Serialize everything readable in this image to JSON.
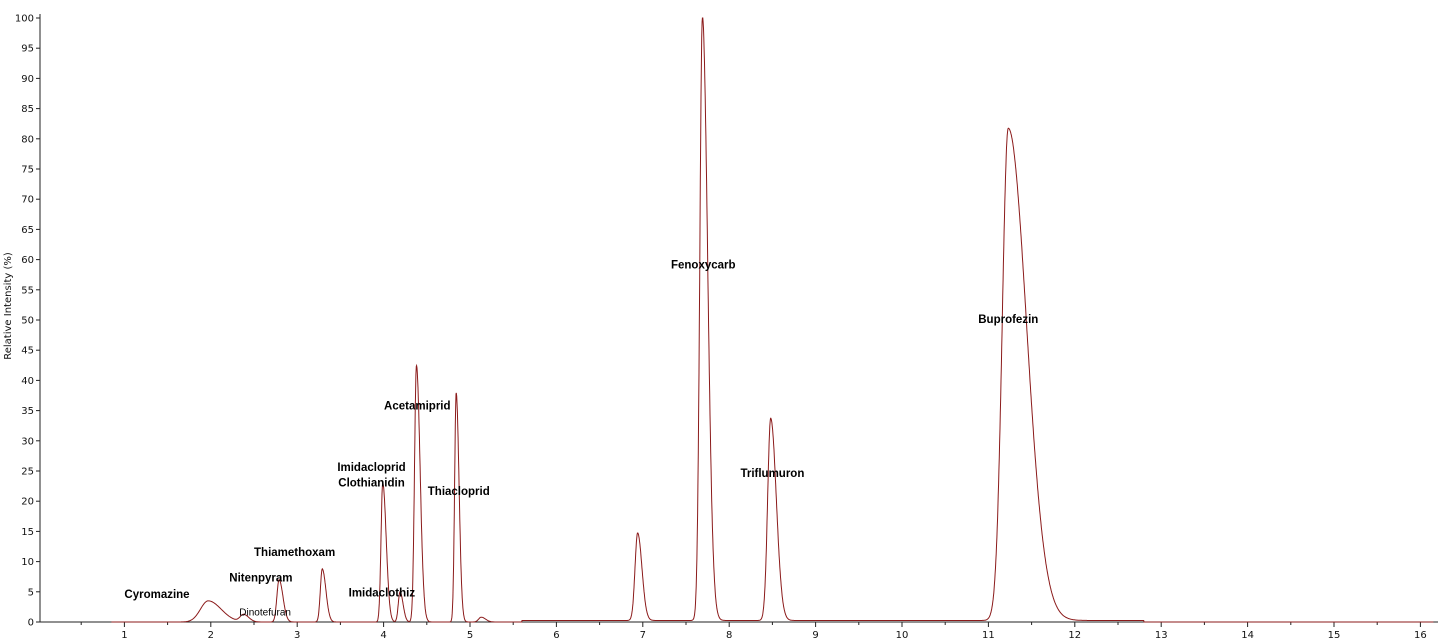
{
  "chart_data": {
    "type": "line",
    "title": "",
    "xlabel": "",
    "ylabel": "Relative Intensity (%)",
    "xlim": [
      0,
      16.2
    ],
    "ylim": [
      0,
      100
    ],
    "x_ticks": [
      1,
      2,
      3,
      4,
      5,
      6,
      7,
      8,
      9,
      10,
      11,
      12,
      13,
      14,
      15,
      16
    ],
    "y_ticks": [
      0,
      5,
      10,
      15,
      20,
      25,
      30,
      35,
      40,
      45,
      50,
      55,
      60,
      65,
      70,
      75,
      80,
      85,
      90,
      95,
      100
    ],
    "grid": false,
    "series_color": "#8b1a1a",
    "peaks": [
      {
        "rt": 1.97,
        "height": 3.5,
        "width": 0.09,
        "tail": 0.06
      },
      {
        "rt": 2.38,
        "height": 1.2,
        "width": 0.04,
        "tail": 0.02
      },
      {
        "rt": 2.79,
        "height": 7.0,
        "width": 0.025,
        "tail": 0.02
      },
      {
        "rt": 3.29,
        "height": 8.8,
        "width": 0.022,
        "tail": 0.02
      },
      {
        "rt": 3.99,
        "height": 23.0,
        "width": 0.02,
        "tail": 0.02
      },
      {
        "rt": 4.19,
        "height": 5.0,
        "width": 0.02,
        "tail": 0.015
      },
      {
        "rt": 4.38,
        "height": 42.5,
        "width": 0.022,
        "tail": 0.02
      },
      {
        "rt": 4.84,
        "height": 38.0,
        "width": 0.018,
        "tail": 0.015
      },
      {
        "rt": 5.13,
        "height": 0.8,
        "width": 0.03,
        "tail": 0.02
      },
      {
        "rt": 6.94,
        "height": 14.5,
        "width": 0.03,
        "tail": 0.02
      },
      {
        "rt": 7.69,
        "height": 100.0,
        "width": 0.03,
        "tail": 0.03
      },
      {
        "rt": 8.48,
        "height": 33.5,
        "width": 0.035,
        "tail": 0.03
      },
      {
        "rt": 11.23,
        "height": 81.5,
        "width": 0.07,
        "tail": 0.14
      }
    ],
    "annotations": [
      {
        "text": "Cyromazine",
        "x": 1.0,
        "y": 4.0,
        "size": "normal"
      },
      {
        "text": "Dinotefuran",
        "x": 2.33,
        "y": 1.1,
        "size": "small"
      },
      {
        "text": "Nitenpyram",
        "x": 2.58,
        "y": 6.7,
        "size": "normal"
      },
      {
        "text": "Thiamethoxam",
        "x": 2.97,
        "y": 10.9,
        "size": "normal"
      },
      {
        "text": "Imidacloprid",
        "x": 3.86,
        "y": 25.0,
        "size": "normal"
      },
      {
        "text": "Clothianidin",
        "x": 3.86,
        "y": 22.4,
        "size": "normal"
      },
      {
        "text": "Imidaclothiz",
        "x": 3.98,
        "y": 4.2,
        "size": "normal"
      },
      {
        "text": "Acetamiprid",
        "x": 4.39,
        "y": 35.2,
        "size": "normal"
      },
      {
        "text": "Thiacloprid",
        "x": 4.87,
        "y": 21.0,
        "size": "normal"
      },
      {
        "text": "Fenoxycarb",
        "x": 7.7,
        "y": 58.5,
        "size": "normal"
      },
      {
        "text": "Triflumuron",
        "x": 8.5,
        "y": 24.0,
        "size": "normal"
      },
      {
        "text": "Buprofezin",
        "x": 11.23,
        "y": 49.5,
        "size": "normal"
      }
    ]
  }
}
